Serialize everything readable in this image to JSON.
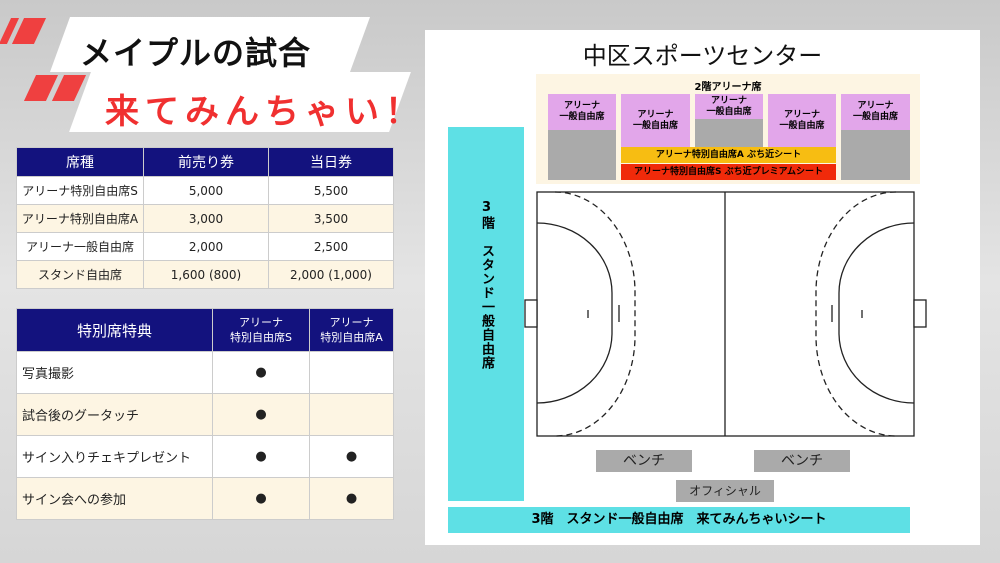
{
  "header": {
    "line1": "メイプルの試合",
    "line2": "来てみんちゃい！"
  },
  "price_table": {
    "columns": [
      "席種",
      "前売り券",
      "当日券"
    ],
    "rows": [
      [
        "アリーナ特別自由席S",
        "5,000",
        "5,500"
      ],
      [
        "アリーナ特別自由席A",
        "3,000",
        "3,500"
      ],
      [
        "アリーナ一般自由席",
        "2,000",
        "2,500"
      ],
      [
        "スタンド自由席",
        "1,600 (800)",
        "2,000 (1,000)"
      ]
    ]
  },
  "benefit_table": {
    "columns": [
      "特別席特典",
      "アリーナ\n特別自由席S",
      "アリーナ\n特別自由席A"
    ],
    "rows": [
      [
        "写真撮影",
        "●",
        ""
      ],
      [
        "試合後のグータッチ",
        "●",
        ""
      ],
      [
        "サイン入りチェキプレゼント",
        "●",
        "●"
      ],
      [
        "サイン会への参加",
        "●",
        "●"
      ]
    ]
  },
  "venue": {
    "title": "中区スポーツセンター",
    "arena_title": "2階アリーナ席",
    "general_label": "アリーナ\n一般自由席",
    "special_a": "アリーナ特別自由席A ぶち近シート",
    "special_s": "アリーナ特別自由席S ぶち近プレミアムシート",
    "stand_side": "3階　スタンド一般自由席",
    "bench1": "ベンチ",
    "bench2": "ベンチ",
    "official": "オフィシャル",
    "stand_bottom": "3階　スタンド一般自由席　来てみんちゃいシート"
  },
  "colors": {
    "navy": "#13127e",
    "red": "#f03030",
    "cyan": "#5ee0e5",
    "pink": "#e2a6ea",
    "yellow": "#f7bd12",
    "premium": "#f02a0a"
  }
}
